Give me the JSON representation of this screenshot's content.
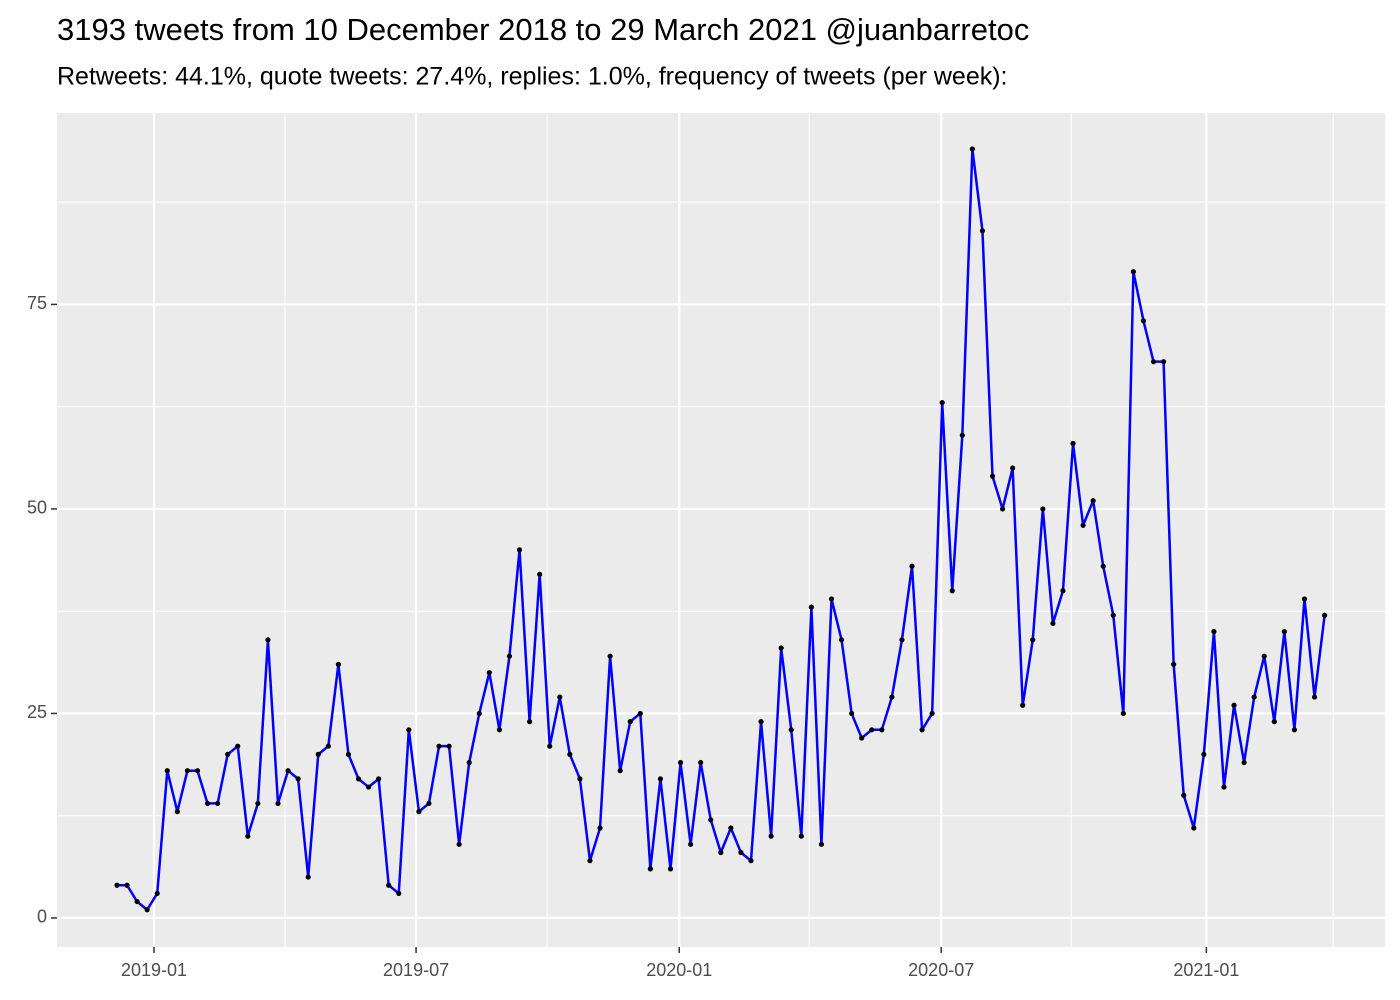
{
  "chart_data": {
    "type": "line",
    "title": "3193 tweets from 10 December 2018 to 29 March 2021 @juanbarretoc",
    "subtitle": "Retweets: 44.1%, quote tweets: 27.4%, replies: 1.0%, frequency of tweets (per week):",
    "x": [
      0,
      1,
      2,
      3,
      4,
      5,
      6,
      7,
      8,
      9,
      10,
      11,
      12,
      13,
      14,
      15,
      16,
      17,
      18,
      19,
      20,
      21,
      22,
      23,
      24,
      25,
      26,
      27,
      28,
      29,
      30,
      31,
      32,
      33,
      34,
      35,
      36,
      37,
      38,
      39,
      40,
      41,
      42,
      43,
      44,
      45,
      46,
      47,
      48,
      49,
      50,
      51,
      52,
      53,
      54,
      55,
      56,
      57,
      58,
      59,
      60,
      61,
      62,
      63,
      64,
      65,
      66,
      67,
      68,
      69,
      70,
      71,
      72,
      73,
      74,
      75,
      76,
      77,
      78,
      79,
      80,
      81,
      82,
      83,
      84,
      85,
      86,
      87,
      88,
      89,
      90,
      91,
      92,
      93,
      94,
      95,
      96,
      97,
      98,
      99,
      100,
      101,
      102,
      103,
      104,
      105,
      106,
      107,
      108,
      109,
      110,
      111,
      112,
      113,
      114,
      115,
      116,
      117,
      118,
      119,
      120
    ],
    "series": [
      {
        "color": "#0000ff",
        "point_color": "#000000",
        "values": [
          4,
          4,
          2,
          1,
          3,
          18,
          13,
          18,
          18,
          14,
          14,
          20,
          21,
          10,
          14,
          34,
          14,
          18,
          17,
          5,
          20,
          21,
          31,
          20,
          17,
          16,
          17,
          4,
          3,
          23,
          13,
          14,
          21,
          21,
          9,
          19,
          25,
          30,
          23,
          32,
          45,
          24,
          42,
          21,
          27,
          20,
          17,
          7,
          11,
          32,
          18,
          24,
          25,
          6,
          17,
          6,
          19,
          9,
          19,
          12,
          8,
          11,
          8,
          7,
          24,
          10,
          33,
          23,
          10,
          38,
          9,
          39,
          34,
          25,
          22,
          23,
          23,
          27,
          34,
          43,
          23,
          25,
          63,
          40,
          59,
          94,
          84,
          54,
          50,
          55,
          26,
          34,
          50,
          36,
          40,
          58,
          48,
          51,
          43,
          37,
          25,
          79,
          73,
          68,
          68,
          31,
          15,
          11,
          20,
          35,
          16,
          26,
          19,
          27,
          32,
          24,
          35,
          23,
          39,
          27,
          37
        ]
      }
    ],
    "xlim": [
      -5.96,
      126.0
    ],
    "xticks": [
      {
        "value": 3.68,
        "label": "2019-01"
      },
      {
        "value": 29.72,
        "label": "2019-07"
      },
      {
        "value": 55.87,
        "label": "2020-01"
      },
      {
        "value": 81.9,
        "label": "2020-07"
      },
      {
        "value": 108.25,
        "label": "2021-01"
      }
    ],
    "ylim": [
      -3.55,
      98.4
    ],
    "yticks": [
      0,
      25,
      50,
      75
    ],
    "grid": true
  }
}
